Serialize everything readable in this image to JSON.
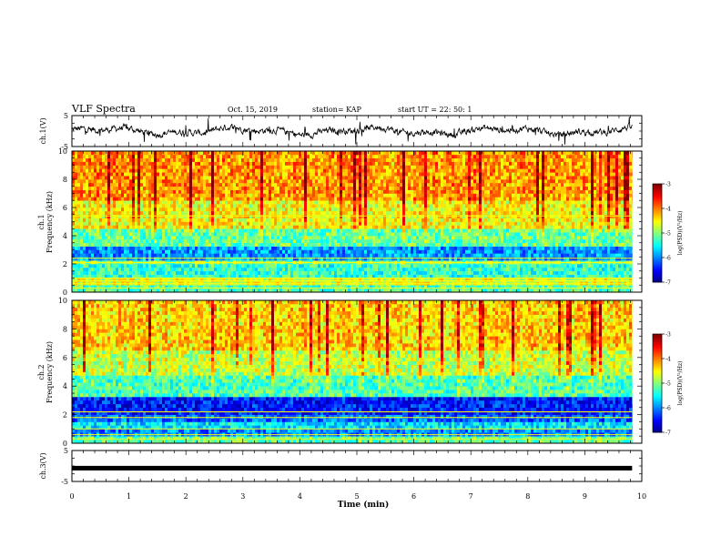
{
  "header": {
    "title": "VLF Spectra",
    "date": "Oct. 15, 2019",
    "station": "station= KAP",
    "start_ut": "start UT =   22: 50: 1"
  },
  "chart_data": [
    {
      "type": "line",
      "name": "ch1-waveform",
      "ylabel": "ch.1(V)",
      "ylim": [
        -5,
        5
      ],
      "yticks": [
        {
          "v": 5,
          "label": "5"
        },
        {
          "v": -5,
          "label": "-5"
        }
      ],
      "xlim": [
        0,
        10
      ],
      "data_extent_min": 9.83,
      "trace_color": "#000000"
    },
    {
      "type": "heatmap",
      "name": "ch1-spectrogram",
      "ylabel": "ch.1\nFrequency (kHz)",
      "ylim": [
        0,
        10
      ],
      "yticks": [
        0,
        2,
        4,
        6,
        8,
        10
      ],
      "xlim": [
        0,
        10
      ],
      "data_extent_min": 9.83,
      "colorbar": {
        "label": "log(PSD)(V²/Hz)",
        "range": [
          -7,
          -3
        ],
        "ticks": [
          -3,
          -4,
          -5,
          -6,
          -7
        ]
      },
      "bands": [
        {
          "f": [
            0.0,
            0.5
          ],
          "level": -5.2
        },
        {
          "f": [
            0.5,
            1.0
          ],
          "level": -4.6
        },
        {
          "f": [
            1.0,
            2.0
          ],
          "level": -5.3
        },
        {
          "f": [
            2.0,
            2.2
          ],
          "level": -4.9
        },
        {
          "f": [
            2.2,
            3.2
          ],
          "level": -5.9
        },
        {
          "f": [
            3.2,
            4.5
          ],
          "level": -5.1
        },
        {
          "f": [
            4.5,
            6.5
          ],
          "level": -4.5
        },
        {
          "f": [
            6.5,
            10.0
          ],
          "level": -4.1
        }
      ],
      "tones_khz": [
        0.3,
        0.6,
        0.8,
        1.0,
        2.1,
        2.4,
        5.4
      ]
    },
    {
      "type": "heatmap",
      "name": "ch2-spectrogram",
      "ylabel": "ch.2\nFrequency (kHz)",
      "ylim": [
        0,
        10
      ],
      "yticks": [
        0,
        2,
        4,
        6,
        8,
        10
      ],
      "xlim": [
        0,
        10
      ],
      "data_extent_min": 9.83,
      "colorbar": {
        "label": "log(PSD)(V²/Hz)",
        "range": [
          -7,
          -3
        ],
        "ticks": [
          -3,
          -4,
          -5,
          -6,
          -7
        ]
      },
      "bands": [
        {
          "f": [
            0.0,
            0.4
          ],
          "level": -5.1
        },
        {
          "f": [
            0.4,
            1.0
          ],
          "level": -6.0
        },
        {
          "f": [
            1.0,
            1.6
          ],
          "level": -5.6
        },
        {
          "f": [
            1.6,
            2.0
          ],
          "level": -6.1
        },
        {
          "f": [
            2.0,
            3.2
          ],
          "level": -6.4
        },
        {
          "f": [
            3.2,
            4.8
          ],
          "level": -5.2
        },
        {
          "f": [
            4.8,
            6.5
          ],
          "level": -4.7
        },
        {
          "f": [
            6.5,
            10.0
          ],
          "level": -4.3
        }
      ],
      "tones_khz": [
        0.3,
        0.6,
        1.0,
        1.8,
        2.2
      ]
    },
    {
      "type": "line",
      "name": "ch3-waveform",
      "ylabel": "ch.3(V)",
      "ylim": [
        -5,
        5
      ],
      "yticks": [
        {
          "v": 5,
          "label": "5"
        },
        {
          "v": -5,
          "label": "-5"
        }
      ],
      "xlim": [
        0,
        10
      ],
      "data_extent_min": 9.83,
      "constant_value": -0.7,
      "trace_color": "#000000"
    }
  ],
  "x_axis": {
    "label": "Time (min)",
    "ticks": [
      0,
      1,
      2,
      3,
      4,
      5,
      6,
      7,
      8,
      9,
      10
    ]
  }
}
